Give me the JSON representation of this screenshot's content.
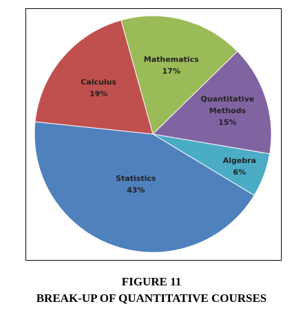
{
  "chart_data": {
    "type": "pie",
    "title": "FIGURE 11",
    "subtitle": "BREAK-UP OF QUANTITATIVE COURSES",
    "categories": [
      "Mathematics",
      "Quantitative Methods",
      "Algebra",
      "Statistics",
      "Calculus"
    ],
    "values": [
      17,
      15,
      6,
      43,
      19
    ],
    "value_labels": [
      "17%",
      "15%",
      "6%",
      "43%",
      "19%"
    ],
    "colors": [
      "#9bbb59",
      "#8064a2",
      "#4bacc6",
      "#4f81bd",
      "#c0504d"
    ]
  }
}
